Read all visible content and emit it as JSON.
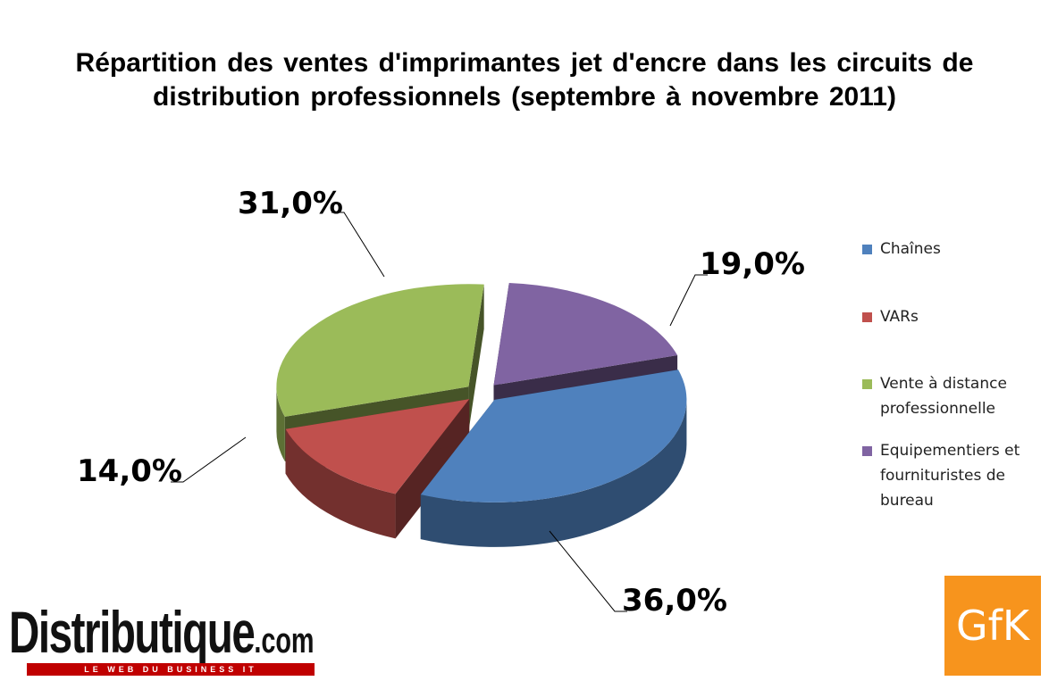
{
  "chart_data": {
    "type": "pie",
    "title": "Répartition des ventes d'imprimantes jet d'encre dans les circuits de distribution professionnels (septembre à novembre 2011)",
    "categories": [
      "Chaînes",
      "VARs",
      "Vente à distance professionnelle",
      "Equipementiers et fournituristes de bureau"
    ],
    "values": [
      36,
      14,
      31,
      19
    ],
    "value_labels": [
      "36,0%",
      "14,0%",
      "31,0%",
      "19,0%"
    ],
    "colors": [
      "#4f81bd",
      "#c0504d",
      "#9bbb59",
      "#8064a2"
    ],
    "legend": "right"
  },
  "branding": {
    "left": "Distributique",
    "left_suffix": ".com",
    "tagline": "LE WEB DU BUSINESS IT",
    "right": "GfK"
  }
}
